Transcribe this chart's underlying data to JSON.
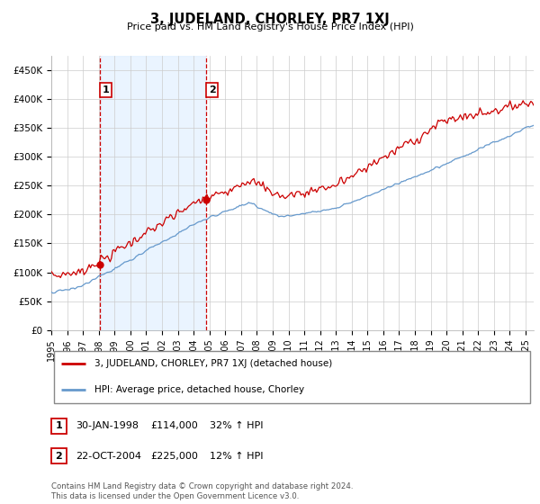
{
  "title": "3, JUDELAND, CHORLEY, PR7 1XJ",
  "subtitle": "Price paid vs. HM Land Registry's House Price Index (HPI)",
  "ylim": [
    0,
    475000
  ],
  "yticks": [
    0,
    50000,
    100000,
    150000,
    200000,
    250000,
    300000,
    350000,
    400000,
    450000
  ],
  "ytick_labels": [
    "£0",
    "£50K",
    "£100K",
    "£150K",
    "£200K",
    "£250K",
    "£300K",
    "£350K",
    "£400K",
    "£450K"
  ],
  "sale1_date": 1998.08,
  "sale1_price": 114000,
  "sale1_label": "1",
  "sale2_date": 2004.81,
  "sale2_price": 225000,
  "sale2_label": "2",
  "legend_line1": "3, JUDELAND, CHORLEY, PR7 1XJ (detached house)",
  "legend_line2": "HPI: Average price, detached house, Chorley",
  "table_row1": [
    "1",
    "30-JAN-1998",
    "£114,000",
    "32% ↑ HPI"
  ],
  "table_row2": [
    "2",
    "22-OCT-2004",
    "£225,000",
    "12% ↑ HPI"
  ],
  "footnote": "Contains HM Land Registry data © Crown copyright and database right 2024.\nThis data is licensed under the Open Government Licence v3.0.",
  "line_color_red": "#cc0000",
  "line_color_blue": "#6699cc",
  "shade_color": "#ddeeff",
  "annotation_box_color": "#cc0000",
  "dashed_line_color": "#cc0000",
  "x_start": 1995.0,
  "x_end": 2025.5,
  "x_tick_years": [
    1995,
    1996,
    1997,
    1998,
    1999,
    2000,
    2001,
    2002,
    2003,
    2004,
    2005,
    2006,
    2007,
    2008,
    2009,
    2010,
    2011,
    2012,
    2013,
    2014,
    2015,
    2016,
    2017,
    2018,
    2019,
    2020,
    2021,
    2022,
    2023,
    2024,
    2025
  ]
}
